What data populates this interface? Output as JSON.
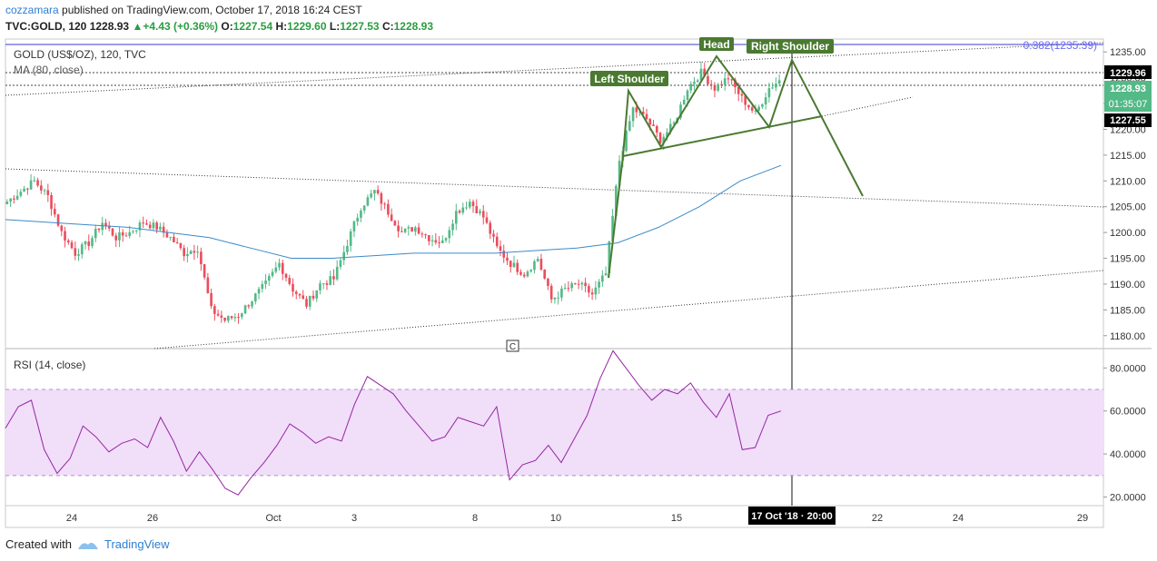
{
  "header": {
    "author": "cozzamara",
    "published_text": "published on TradingView.com, October 17, 2018 16:24 CEST",
    "symbol": "TVC:GOLD, 120",
    "last": "1228.93",
    "change": "+4.43 (+0.36%)",
    "open_label": "O:",
    "open": "1227.54",
    "high_label": "H:",
    "high": "1229.60",
    "low_label": "L:",
    "low": "1227.53",
    "close_label": "C:",
    "close": "1228.93",
    "up_arrow": "▲"
  },
  "legend": {
    "title": "GOLD (US$/OZ), 120, TVC",
    "ma": "MA (80, close)",
    "rsi": "RSI (14, close)"
  },
  "annotations": {
    "head": "Head",
    "left_shoulder": "Left Shoulder",
    "right_shoulder": "Right Shoulder",
    "fib": "0.382(1235.39)",
    "c_marker": "C"
  },
  "footer": {
    "created_with": "Created with",
    "brand": "TradingView"
  },
  "colors": {
    "bull": "#53b987",
    "bear": "#eb4d5c",
    "ma": "#3c8ac7",
    "rsi": "#9427a0",
    "rsi_band": "#f1def9",
    "pattern": "#4a7a30",
    "axis_label_bg": "#000000"
  },
  "chart_data": [
    {
      "type": "candlestick",
      "title": "GOLD (US$/OZ), 120, TVC",
      "ylim": [
        1177.5,
        1237.5
      ],
      "y_ticks": [
        1180,
        1185,
        1190,
        1195,
        1200,
        1205,
        1210,
        1215,
        1220,
        1225,
        1230,
        1235
      ],
      "y_tick_labels": [
        "1180.00",
        "1185.00",
        "1190.00",
        "1195.00",
        "1200.00",
        "1205.00",
        "1210.00",
        "1215.00",
        "1220.00",
        "1225.00",
        "1230.00",
        "1235.00"
      ],
      "x_ticks": [
        "24",
        "26",
        "Oct",
        "3",
        "8",
        "10",
        "15",
        "17 Oct '18 · 20:00",
        "22",
        "24",
        "29"
      ],
      "price_labels": {
        "upper": "1229.96",
        "last": "1228.93",
        "countdown": "01:35:07",
        "lower": "1227.55"
      },
      "close_path": [
        1206,
        1208,
        1210,
        1207,
        1200,
        1196,
        1198,
        1202,
        1199,
        1200,
        1202,
        1201,
        1199,
        1196,
        1197,
        1185,
        1183,
        1184,
        1187,
        1190,
        1194,
        1189,
        1186,
        1190,
        1191,
        1198,
        1205,
        1208,
        1204,
        1200,
        1201,
        1199,
        1198,
        1204,
        1206,
        1203,
        1197,
        1194,
        1192,
        1195,
        1187,
        1189,
        1190,
        1188,
        1192,
        1214,
        1224,
        1222,
        1218,
        1221,
        1228,
        1231,
        1228,
        1230,
        1226,
        1223,
        1228,
        1230
      ],
      "ma_path": [
        1202.5,
        1202,
        1201.5,
        1201,
        1200,
        1199,
        1197,
        1195,
        1195,
        1195.5,
        1196,
        1196,
        1196,
        1196.5,
        1197,
        1198,
        1201,
        1205,
        1210,
        1213
      ],
      "series": [
        {
          "name": "MA (80, close)"
        }
      ]
    },
    {
      "type": "line",
      "title": "RSI (14, close)",
      "ylim": [
        16,
        89
      ],
      "y_ticks": [
        20,
        40,
        60,
        80
      ],
      "y_tick_labels": [
        "20.0000",
        "40.0000",
        "60.0000",
        "80.0000"
      ],
      "band": [
        30,
        70
      ],
      "values": [
        52,
        62,
        65,
        42,
        31,
        38,
        53,
        48,
        41,
        45,
        47,
        43,
        57,
        46,
        32,
        41,
        33,
        24,
        21,
        29,
        36,
        44,
        54,
        50,
        45,
        48,
        46,
        63,
        76,
        72,
        68,
        60,
        53,
        46,
        48,
        57,
        55,
        53,
        62,
        28,
        35,
        37,
        44,
        36,
        47,
        58,
        75,
        88,
        80,
        72,
        65,
        70,
        68,
        73,
        64,
        57,
        68,
        42,
        43,
        58,
        60
      ],
      "series": [
        {
          "name": "RSI (14, close)"
        }
      ]
    }
  ]
}
